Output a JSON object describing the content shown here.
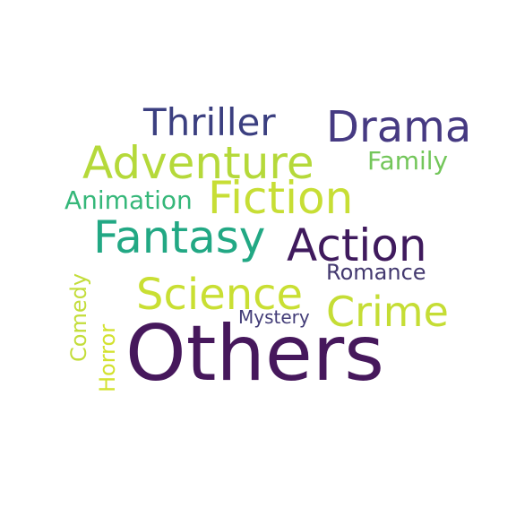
{
  "title": "",
  "words": [
    {
      "id": "others",
      "text": "Others",
      "color": "#46185c"
    },
    {
      "id": "action",
      "text": "Action",
      "color": "#3f1a5d"
    },
    {
      "id": "drama",
      "text": "Drama",
      "color": "#463a82"
    },
    {
      "id": "thriller",
      "text": "Thriller",
      "color": "#3b3f80"
    },
    {
      "id": "fiction",
      "text": "Fiction",
      "color": "#c7de35"
    },
    {
      "id": "adventure",
      "text": "Adventure",
      "color": "#b5d93a"
    },
    {
      "id": "fantasy",
      "text": "Fantasy",
      "color": "#22a884"
    },
    {
      "id": "science",
      "text": "Science",
      "color": "#c9df33"
    },
    {
      "id": "crime",
      "text": "Crime",
      "color": "#c5dd35"
    },
    {
      "id": "family",
      "text": "Family",
      "color": "#73c65a"
    },
    {
      "id": "animation",
      "text": "Animation",
      "color": "#35b779"
    },
    {
      "id": "romance",
      "text": "Romance",
      "color": "#43396f"
    },
    {
      "id": "mystery",
      "text": "Mystery",
      "color": "#433d78"
    },
    {
      "id": "comedy",
      "text": "Comedy",
      "color": "#c3dd3a"
    },
    {
      "id": "horror",
      "text": "Horror",
      "color": "#d3e22f"
    }
  ]
}
